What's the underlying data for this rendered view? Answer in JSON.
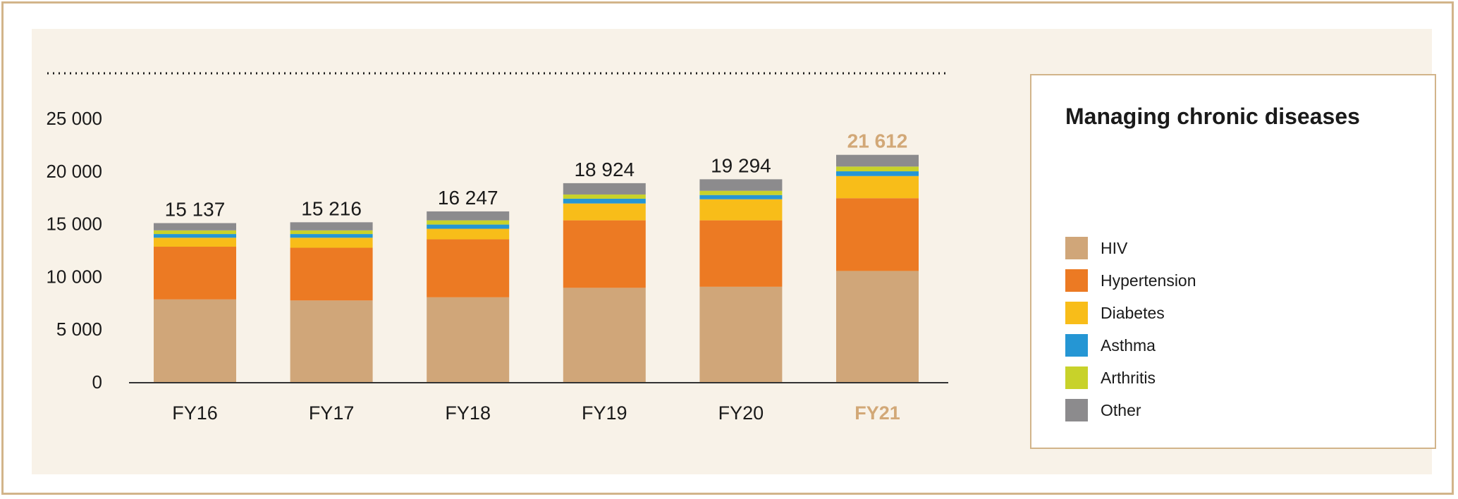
{
  "chart_data": {
    "type": "bar",
    "stacked": true,
    "title": "Managing chronic diseases",
    "categories": [
      "FY16",
      "FY17",
      "FY18",
      "FY19",
      "FY20",
      "FY21"
    ],
    "highlight_category": "FY21",
    "totals": [
      15137,
      15216,
      16247,
      18924,
      19294,
      21612
    ],
    "total_labels": [
      "15 137",
      "15 216",
      "16 247",
      "18 924",
      "19 294",
      "21 612"
    ],
    "series": [
      {
        "name": "HIV",
        "color": "#d0a679",
        "values": [
          7900,
          7800,
          8100,
          9000,
          9100,
          10600
        ]
      },
      {
        "name": "Hypertension",
        "color": "#ec7a23",
        "values": [
          5000,
          5000,
          5500,
          6400,
          6300,
          6900
        ]
      },
      {
        "name": "Diabetes",
        "color": "#f8bd19",
        "values": [
          850,
          950,
          1000,
          1600,
          2000,
          2100
        ]
      },
      {
        "name": "Asthma",
        "color": "#2596d4",
        "values": [
          350,
          350,
          400,
          450,
          400,
          450
        ]
      },
      {
        "name": "Arthritis",
        "color": "#c8d22a",
        "values": [
          350,
          350,
          400,
          400,
          400,
          450
        ]
      },
      {
        "name": "Other",
        "color": "#8c8b8d",
        "values": [
          687,
          766,
          847,
          1074,
          1094,
          1112
        ]
      }
    ],
    "y_ticks": [
      0,
      5000,
      10000,
      15000,
      20000,
      25000
    ],
    "y_tick_labels": [
      "0",
      "5 000",
      "10 000",
      "15 000",
      "20 000",
      "25 000"
    ],
    "ylim": [
      0,
      25000
    ],
    "xlabel": "",
    "ylabel": "",
    "grid": false,
    "legend_position": "right"
  },
  "colors": {
    "frame": "#d2b48a",
    "panel": "#f8f2e8",
    "highlight_text": "#d2a877",
    "text": "#1a1a1a"
  }
}
